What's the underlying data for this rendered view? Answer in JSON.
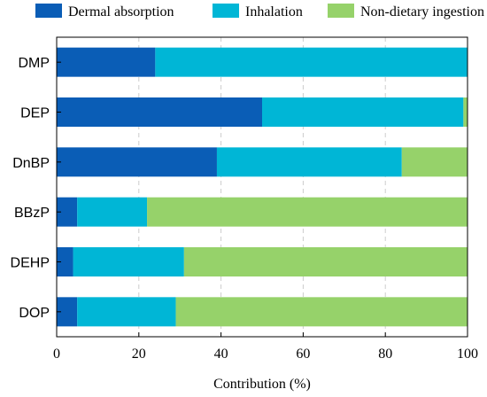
{
  "chart_data": {
    "type": "bar",
    "orientation": "horizontal",
    "stacked": true,
    "title": "",
    "xlabel": "Contribution (%)",
    "ylabel": "",
    "xlim": [
      0,
      100
    ],
    "xticks": [
      0,
      20,
      40,
      60,
      80,
      100
    ],
    "grid": "vertical dashed",
    "legend_position": "top",
    "categories": [
      "DMP",
      "DEP",
      "DnBP",
      "BBzP",
      "DEHP",
      "DOP"
    ],
    "series": [
      {
        "name": "Dermal absorption",
        "color": "#0a5db6",
        "values": [
          24,
          50,
          39,
          5,
          4,
          5
        ]
      },
      {
        "name": "Inhalation",
        "color": "#00b6d6",
        "values": [
          76,
          49,
          45,
          17,
          27,
          24
        ]
      },
      {
        "name": "Non-dietary ingestion",
        "color": "#96d26a",
        "values": [
          0,
          1,
          16,
          78,
          69,
          71
        ]
      }
    ]
  }
}
